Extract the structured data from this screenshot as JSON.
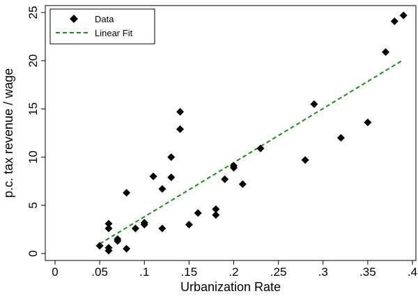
{
  "chart_data": {
    "type": "scatter",
    "xlabel": "Urbanization Rate",
    "ylabel": "p.c. tax revenue / wage",
    "xlim": [
      0,
      0.4
    ],
    "ylim": [
      0,
      25
    ],
    "x_ticks": [
      {
        "value": 0,
        "label": "0"
      },
      {
        "value": 0.05,
        "label": ".05"
      },
      {
        "value": 0.1,
        "label": ".1"
      },
      {
        "value": 0.15,
        "label": ".15"
      },
      {
        "value": 0.2,
        "label": ".2"
      },
      {
        "value": 0.25,
        "label": ".25"
      },
      {
        "value": 0.3,
        "label": ".3"
      },
      {
        "value": 0.35,
        "label": ".35"
      },
      {
        "value": 0.4,
        "label": ".4"
      }
    ],
    "y_ticks": [
      {
        "value": 0,
        "label": "0"
      },
      {
        "value": 5,
        "label": "5"
      },
      {
        "value": 10,
        "label": "10"
      },
      {
        "value": 15,
        "label": "15"
      },
      {
        "value": 20,
        "label": "20"
      },
      {
        "value": 25,
        "label": "25"
      }
    ],
    "grid": false,
    "legend": {
      "position": "top-left",
      "entries": [
        {
          "label": "Data",
          "marker": "diamond",
          "color": "#000000"
        },
        {
          "label": "Linear Fit",
          "line": "dashed",
          "color": "#1a8c1a"
        }
      ]
    },
    "series": [
      {
        "name": "Data",
        "kind": "scatter",
        "color": "#000000",
        "points": [
          {
            "x": 0.05,
            "y": 0.8
          },
          {
            "x": 0.06,
            "y": 0.3
          },
          {
            "x": 0.06,
            "y": 0.6
          },
          {
            "x": 0.06,
            "y": 2.6
          },
          {
            "x": 0.06,
            "y": 3.1
          },
          {
            "x": 0.07,
            "y": 1.3
          },
          {
            "x": 0.07,
            "y": 1.5
          },
          {
            "x": 0.08,
            "y": 0.5
          },
          {
            "x": 0.08,
            "y": 6.3
          },
          {
            "x": 0.09,
            "y": 2.6
          },
          {
            "x": 0.1,
            "y": 3.0
          },
          {
            "x": 0.1,
            "y": 3.2
          },
          {
            "x": 0.11,
            "y": 8.0
          },
          {
            "x": 0.12,
            "y": 2.6
          },
          {
            "x": 0.12,
            "y": 6.7
          },
          {
            "x": 0.13,
            "y": 7.9
          },
          {
            "x": 0.13,
            "y": 10.0
          },
          {
            "x": 0.14,
            "y": 12.9
          },
          {
            "x": 0.14,
            "y": 14.7
          },
          {
            "x": 0.15,
            "y": 3.0
          },
          {
            "x": 0.16,
            "y": 4.2
          },
          {
            "x": 0.18,
            "y": 4.0
          },
          {
            "x": 0.18,
            "y": 4.6
          },
          {
            "x": 0.19,
            "y": 7.7
          },
          {
            "x": 0.2,
            "y": 8.9
          },
          {
            "x": 0.2,
            "y": 9.1
          },
          {
            "x": 0.21,
            "y": 7.2
          },
          {
            "x": 0.23,
            "y": 10.9
          },
          {
            "x": 0.28,
            "y": 9.7
          },
          {
            "x": 0.29,
            "y": 15.5
          },
          {
            "x": 0.32,
            "y": 12.0
          },
          {
            "x": 0.35,
            "y": 13.6
          },
          {
            "x": 0.37,
            "y": 20.9
          },
          {
            "x": 0.38,
            "y": 24.1
          },
          {
            "x": 0.39,
            "y": 24.7
          }
        ]
      },
      {
        "name": "Linear Fit",
        "kind": "line",
        "style": "dashed",
        "color": "#1a8c1a",
        "points": [
          {
            "x": 0.05,
            "y": 1.0
          },
          {
            "x": 0.39,
            "y": 20.1
          }
        ]
      }
    ]
  }
}
